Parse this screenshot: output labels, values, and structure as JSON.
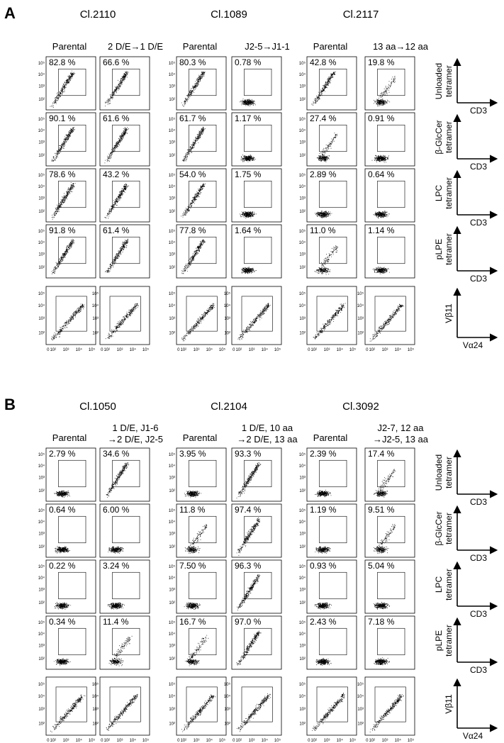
{
  "ticks": [
    "0",
    "10²",
    "10³",
    "10⁴",
    "10⁵"
  ],
  "panels": [
    {
      "label": "A",
      "clones": [
        {
          "name": "Cl.2110",
          "columns": [
            {
              "header": [
                "Parental"
              ],
              "percents": [
                "82.8 %",
                "90.1 %",
                "78.6 %",
                "91.8 %"
              ]
            },
            {
              "header": [
                "2 D/E→1 D/E"
              ],
              "percents": [
                "66.6 %",
                "61.6 %",
                "43.2 %",
                "61.4 %"
              ]
            }
          ]
        },
        {
          "name": "Cl.1089",
          "columns": [
            {
              "header": [
                "Parental"
              ],
              "percents": [
                "80.3 %",
                "61.7 %",
                "54.0 %",
                "77.8 %"
              ]
            },
            {
              "header": [
                "J2-5→J1-1"
              ],
              "percents": [
                "0.78 %",
                "1.17 %",
                "1.75 %",
                "1.64 %"
              ]
            }
          ]
        },
        {
          "name": "Cl.2117",
          "columns": [
            {
              "header": [
                "Parental"
              ],
              "percents": [
                "42.8 %",
                "27.4 %",
                "2.89 %",
                "11.0 %"
              ]
            },
            {
              "header": [
                "13 aa→12 aa"
              ],
              "percents": [
                "19.8 %",
                "0.91 %",
                "0.64 %",
                "1.14 %"
              ]
            }
          ]
        }
      ],
      "row_labels": [
        {
          "y": [
            "Unloaded",
            "tetramer"
          ],
          "x": "CD3"
        },
        {
          "y": [
            "β-GlcCer",
            "tetramer"
          ],
          "x": "CD3"
        },
        {
          "y": [
            "LPC",
            "tetramer"
          ],
          "x": "CD3"
        },
        {
          "y": [
            "pLPE",
            "tetramer"
          ],
          "x": "CD3"
        },
        {
          "y": [
            "Vβ11"
          ],
          "x": "Vα24"
        }
      ]
    },
    {
      "label": "B",
      "clones": [
        {
          "name": "Cl.1050",
          "columns": [
            {
              "header": [
                "Parental"
              ],
              "percents": [
                "2.79 %",
                "0.64 %",
                "0.22 %",
                "0.34 %"
              ]
            },
            {
              "header": [
                "1 D/E, J1-6",
                "→2 D/E, J2-5"
              ],
              "percents": [
                "34.6 %",
                "6.00 %",
                "3.24 %",
                "11.4 %"
              ]
            }
          ]
        },
        {
          "name": "Cl.2104",
          "columns": [
            {
              "header": [
                "Parental"
              ],
              "percents": [
                "3.95 %",
                "11.8 %",
                "7.50 %",
                "16.7 %"
              ]
            },
            {
              "header": [
                "1 D/E, 10 aa",
                "→2 D/E, 13 aa"
              ],
              "percents": [
                "93.3 %",
                "97.4 %",
                "96.3 %",
                "97.0 %"
              ]
            }
          ]
        },
        {
          "name": "Cl.3092",
          "columns": [
            {
              "header": [
                "Parental"
              ],
              "percents": [
                "2.39 %",
                "1.19 %",
                "0.93 %",
                "2.43 %"
              ]
            },
            {
              "header": [
                "J2-7, 12 aa",
                "→J2-5, 13 aa"
              ],
              "percents": [
                "17.4 %",
                "9.51 %",
                "5.04 %",
                "7.18 %"
              ]
            }
          ]
        }
      ],
      "row_labels": [
        {
          "y": [
            "Unloaded",
            "tetramer"
          ],
          "x": "CD3"
        },
        {
          "y": [
            "β-GlcCer",
            "tetramer"
          ],
          "x": "CD3"
        },
        {
          "y": [
            "LPC",
            "tetramer"
          ],
          "x": "CD3"
        },
        {
          "y": [
            "pLPE",
            "tetramer"
          ],
          "x": "CD3"
        },
        {
          "y": [
            "Vβ11"
          ],
          "x": "Vα24"
        }
      ]
    }
  ]
}
